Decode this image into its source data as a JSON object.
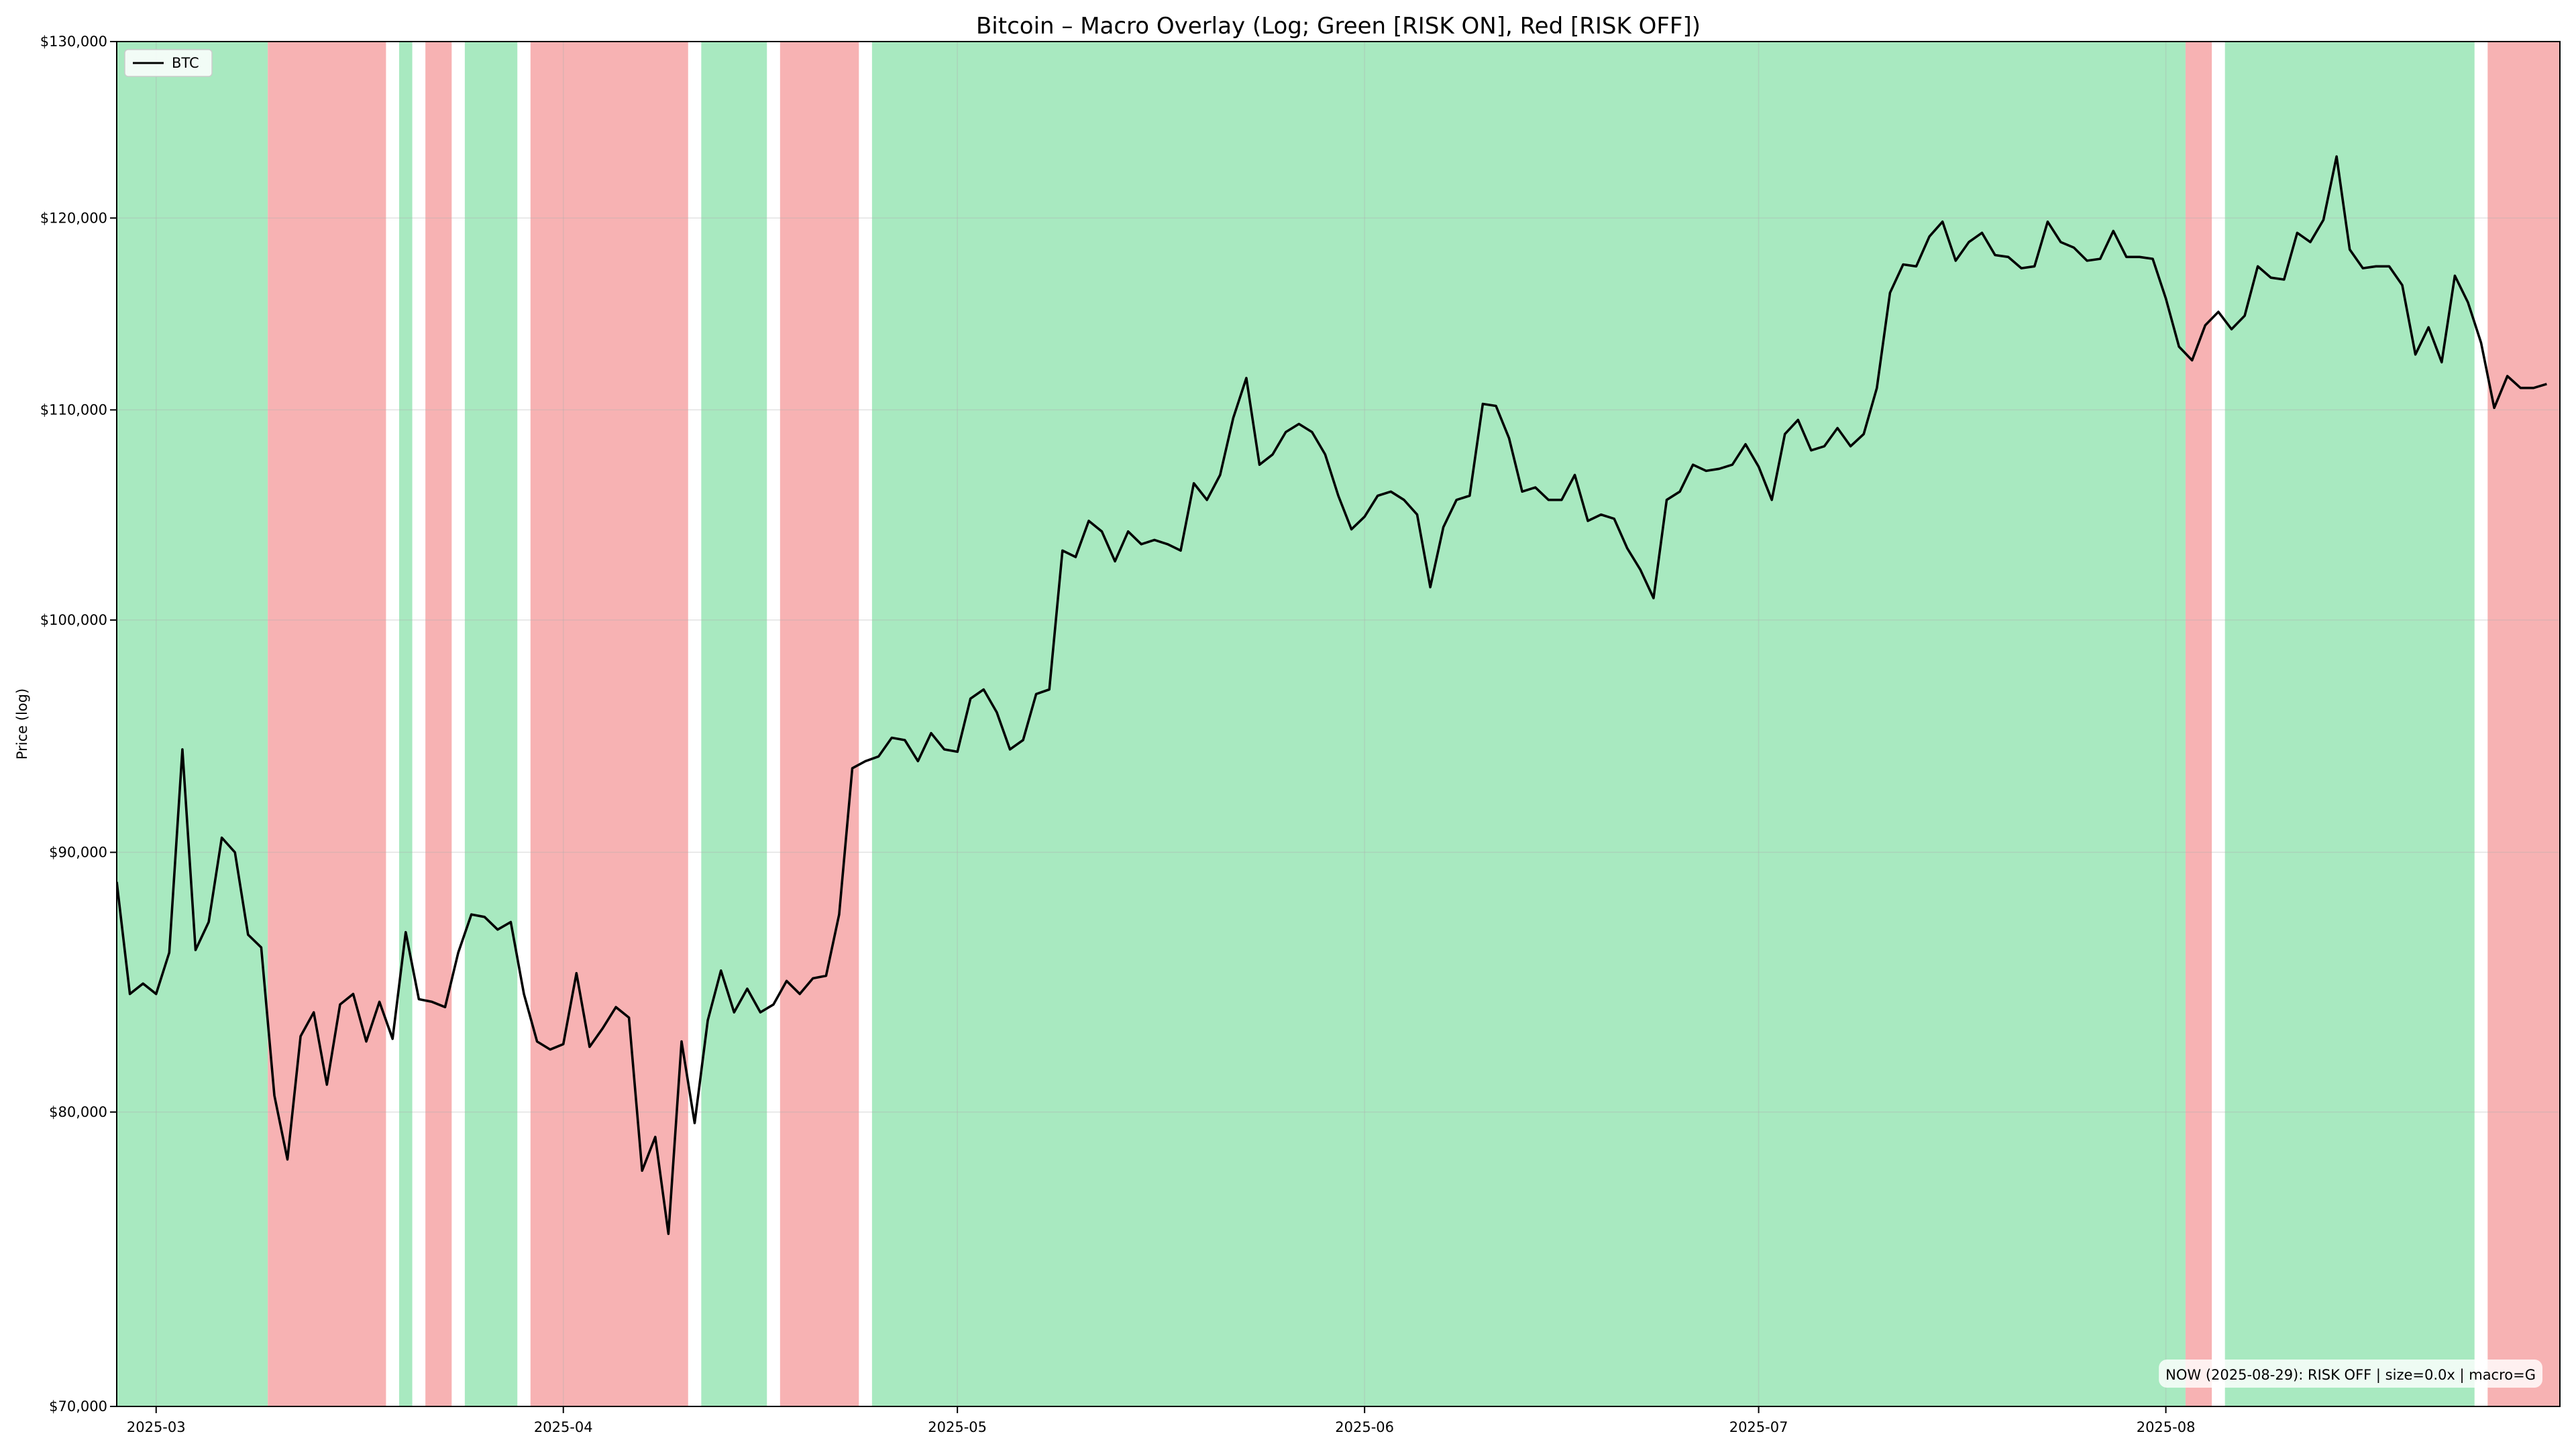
{
  "chart_data": {
    "type": "line",
    "title": "Bitcoin – Macro Overlay (Log; Green [RISK ON], Red [RISK OFF])",
    "ylabel": "Price (log)",
    "xlabel": "",
    "yscale": "log",
    "ylim": [
      70000,
      130000
    ],
    "xlim": [
      "2025-02-26",
      "2025-08-31"
    ],
    "grid": true,
    "legend_position": "top-left",
    "x_ticks": [
      "2025-03-01",
      "2025-04-01",
      "2025-05-01",
      "2025-06-01",
      "2025-07-01",
      "2025-08-01"
    ],
    "x_tick_labels": [
      "2025-03",
      "2025-04",
      "2025-05",
      "2025-06",
      "2025-07",
      "2025-08"
    ],
    "y_ticks": [
      70000,
      80000,
      90000,
      100000,
      110000,
      120000,
      130000
    ],
    "y_tick_labels": [
      "$70,000",
      "$80,000",
      "$90,000",
      "$100,000",
      "$110,000",
      "$120,000",
      "$130,000"
    ],
    "colors": {
      "risk_on": "#a8e9c0",
      "risk_off": "#f7b2b3",
      "line": "#000000"
    },
    "regimes": [
      {
        "state": "RISK ON",
        "start": "2025-02-26",
        "end": "2025-03-09"
      },
      {
        "state": "RISK OFF",
        "start": "2025-03-10",
        "end": "2025-03-18"
      },
      {
        "state": "RISK ON",
        "start": "2025-03-20",
        "end": "2025-03-20"
      },
      {
        "state": "RISK OFF",
        "start": "2025-03-22",
        "end": "2025-03-23"
      },
      {
        "state": "RISK ON",
        "start": "2025-03-25",
        "end": "2025-03-28"
      },
      {
        "state": "RISK OFF",
        "start": "2025-03-30",
        "end": "2025-04-10"
      },
      {
        "state": "RISK ON",
        "start": "2025-04-12",
        "end": "2025-04-16"
      },
      {
        "state": "RISK OFF",
        "start": "2025-04-18",
        "end": "2025-04-23"
      },
      {
        "state": "RISK ON",
        "start": "2025-04-25",
        "end": "2025-08-02"
      },
      {
        "state": "RISK OFF",
        "start": "2025-08-03",
        "end": "2025-08-04"
      },
      {
        "state": "RISK ON",
        "start": "2025-08-06",
        "end": "2025-08-24"
      },
      {
        "state": "RISK OFF",
        "start": "2025-08-26",
        "end": "2025-08-31"
      }
    ],
    "series": [
      {
        "name": "BTC",
        "start_date": "2025-02-26",
        "step_days": 1,
        "values": [
          88800,
          84400,
          84800,
          84400,
          86000,
          94300,
          86100,
          87200,
          90600,
          90000,
          86700,
          86200,
          80600,
          78300,
          82800,
          83700,
          81000,
          84000,
          84400,
          82600,
          84100,
          82700,
          86800,
          84200,
          84100,
          83900,
          86000,
          87500,
          87400,
          86900,
          87200,
          84400,
          82600,
          82300,
          82500,
          85200,
          82400,
          83100,
          83900,
          83500,
          77900,
          79100,
          75700,
          82600,
          79600,
          83400,
          85300,
          83700,
          84600,
          83700,
          84000,
          84900,
          84400,
          85000,
          85100,
          87500,
          93500,
          93800,
          94000,
          94800,
          94700,
          93800,
          95000,
          94300,
          94200,
          96500,
          96900,
          95900,
          94300,
          94700,
          96700,
          96900,
          103200,
          102900,
          104600,
          104100,
          102700,
          104100,
          103500,
          103700,
          103500,
          103200,
          106400,
          105600,
          106800,
          109600,
          111600,
          107300,
          107800,
          108900,
          109300,
          108900,
          107800,
          105800,
          104200,
          104800,
          105800,
          106000,
          105600,
          104900,
          101500,
          104300,
          105600,
          105800,
          110300,
          110200,
          108600,
          106000,
          106200,
          105600,
          105600,
          106800,
          104600,
          104900,
          104700,
          103300,
          102300,
          101000,
          105600,
          106000,
          107300,
          107000,
          107100,
          107300,
          108300,
          107200,
          105600,
          108800,
          109500,
          108000,
          108200,
          109100,
          108200,
          108800,
          111100,
          116000,
          117500,
          117400,
          119000,
          119800,
          117700,
          118700,
          119200,
          118000,
          117900,
          117300,
          117400,
          119800,
          118700,
          118400,
          117700,
          117800,
          119300,
          117900,
          117900,
          117800,
          115700,
          113200,
          112500,
          114300,
          115000,
          114100,
          114800,
          117400,
          116800,
          116700,
          119200,
          118700,
          119900,
          123400,
          118300,
          117300,
          117400,
          117400,
          116400,
          112800,
          114200,
          112400,
          116900,
          115500,
          113400,
          110100,
          111700,
          111100,
          111100,
          111300
        ]
      }
    ],
    "annotation": {
      "text": "NOW (2025-08-29): RISK OFF  | size=0.0x  | macro=G",
      "position": "bottom-right"
    }
  }
}
